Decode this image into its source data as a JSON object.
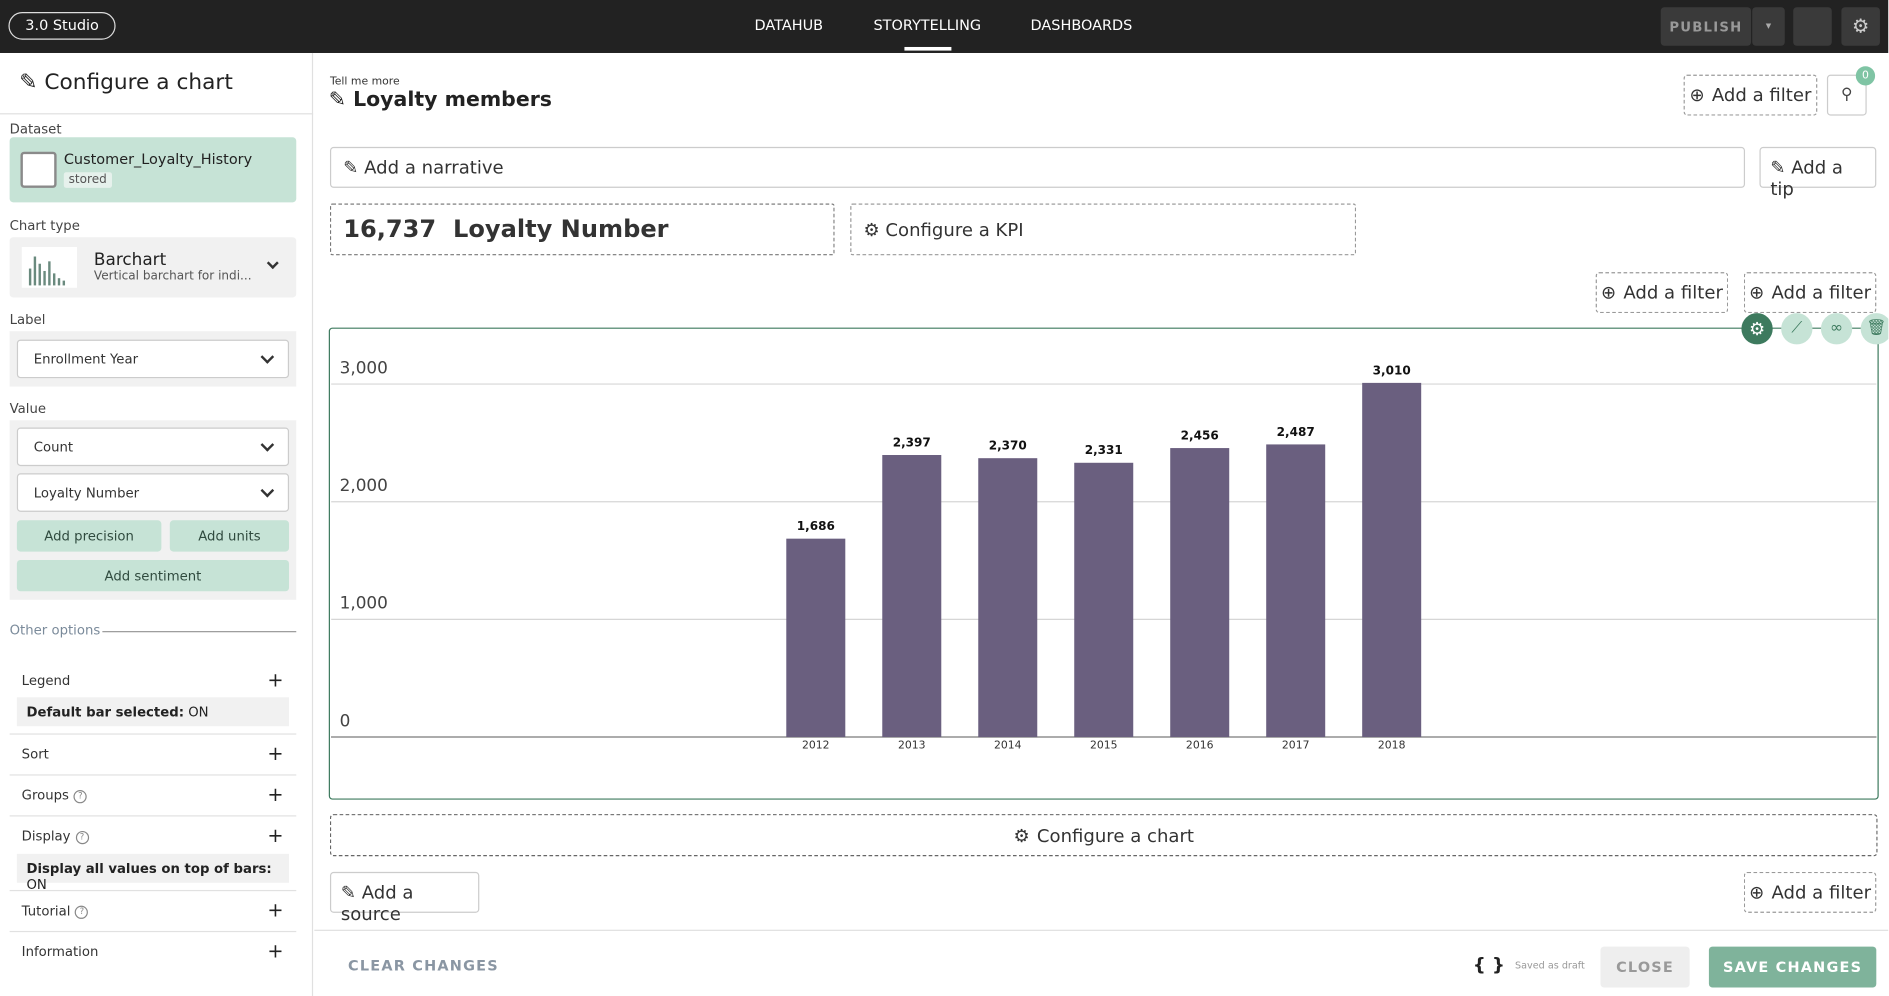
{
  "topbar": {
    "brand": "3.0 Studio",
    "nav": [
      "DATAHUB",
      "STORYTELLING",
      "DASHBOARDS"
    ],
    "publish": "PUBLISH"
  },
  "sidebar": {
    "title": "Configure a chart",
    "dataset_label": "Dataset",
    "dataset_name": "Customer_Loyalty_History",
    "dataset_tag": "stored",
    "chart_type_label": "Chart type",
    "chart_type_name": "Barchart",
    "chart_type_desc": "Vertical barchart for indi...",
    "label_label": "Label",
    "label_select": "Enrollment Year",
    "value_label": "Value",
    "value_selects": [
      "Count",
      "Loyalty Number"
    ],
    "buttons": [
      "Add precision",
      "Add units",
      "Add sentiment"
    ],
    "other_options": "Other options",
    "options": [
      {
        "name": "Legend",
        "detail_key": "Default bar selected:",
        "detail_value": "ON"
      },
      {
        "name": "Sort"
      },
      {
        "name": "Groups"
      },
      {
        "name": "Display",
        "detail_key": "Display all values on top of bars:",
        "detail_value": "ON"
      },
      {
        "name": "Tutorial"
      },
      {
        "name": "Information"
      }
    ]
  },
  "main": {
    "eyebrow": "Tell me more",
    "title": "Loyalty members",
    "add_filter": "Add a filter",
    "filter_count": "0",
    "narrative": "Add a narrative",
    "tip": "Add a tip",
    "kpi_value": "16,737",
    "kpi_label": "Loyalty Number",
    "configure_kpi": "Configure a KPI",
    "configure_chart": "Configure a chart",
    "add_source": "Add a source"
  },
  "chart_data": {
    "type": "bar",
    "categories": [
      "2012",
      "2013",
      "2014",
      "2015",
      "2016",
      "2017",
      "2018"
    ],
    "values": [
      1686,
      2397,
      2370,
      2331,
      2456,
      2487,
      3010
    ],
    "value_labels": [
      "1,686",
      "2,397",
      "2,370",
      "2,331",
      "2,456",
      "2,487",
      "3,010"
    ],
    "color": "#6a5f7f",
    "ylim": [
      0,
      3300
    ],
    "yticks": [
      0,
      {
        "value": 1000,
        "label": "1,000"
      },
      {
        "value": 2000,
        "label": "2,000"
      },
      {
        "value": 3000,
        "label": "3,000"
      }
    ],
    "grid": true
  },
  "footer": {
    "clear": "CLEAR CHANGES",
    "braces": "{ }",
    "status": "Saved as draft",
    "close": "CLOSE",
    "save": "SAVE CHANGES"
  }
}
